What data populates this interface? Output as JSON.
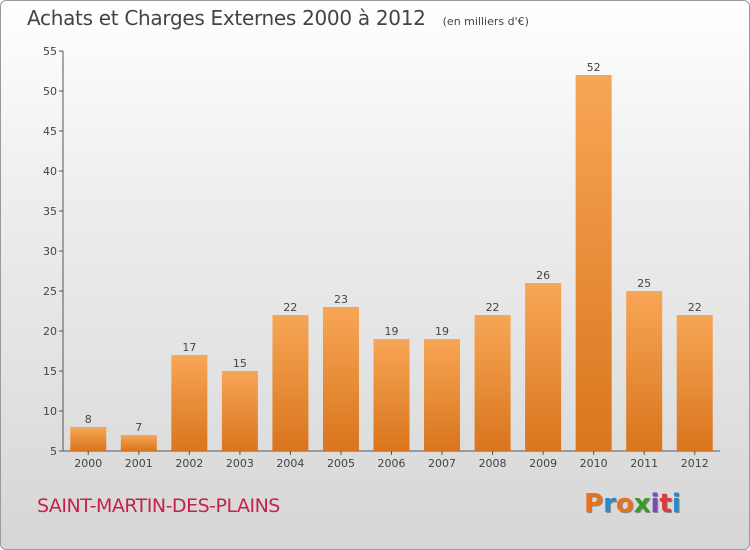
{
  "header": {
    "title": "Achats et Charges Externes 2000 à 2012",
    "unit_note": "(en milliers d'€)"
  },
  "footer": {
    "town": "SAINT-MARTIN-DES-PLAINS",
    "logo": {
      "text": "Proxiti",
      "letters": [
        "P",
        "r",
        "o",
        "x",
        "i",
        "t",
        "i"
      ],
      "colors": [
        "#e8731c",
        "#2b88c8",
        "#e8731c",
        "#3a9a2e",
        "#7a4bb0",
        "#d63c3c",
        "#2b88c8"
      ]
    }
  },
  "chart_data": {
    "type": "bar",
    "categories": [
      "2000",
      "2001",
      "2002",
      "2003",
      "2004",
      "2005",
      "2006",
      "2007",
      "2008",
      "2009",
      "2010",
      "2011",
      "2012"
    ],
    "values": [
      8,
      7,
      17,
      15,
      22,
      23,
      19,
      19,
      22,
      26,
      52,
      25,
      22
    ],
    "data_labels": [
      "8",
      "7",
      "17",
      "15",
      "22",
      "23",
      "19",
      "19",
      "22",
      "26",
      "52",
      "25",
      "22"
    ],
    "title": "Achats et Charges Externes 2000 à 2012",
    "subtitle": "(en milliers d'€)",
    "xlabel": "",
    "ylabel": "",
    "ylim": [
      5,
      55
    ],
    "yticks": [
      5,
      10,
      15,
      20,
      25,
      30,
      35,
      40,
      45,
      50,
      55
    ],
    "grid": false,
    "bar_colors": {
      "top": "#f7a655",
      "bottom": "#d9751d"
    }
  }
}
